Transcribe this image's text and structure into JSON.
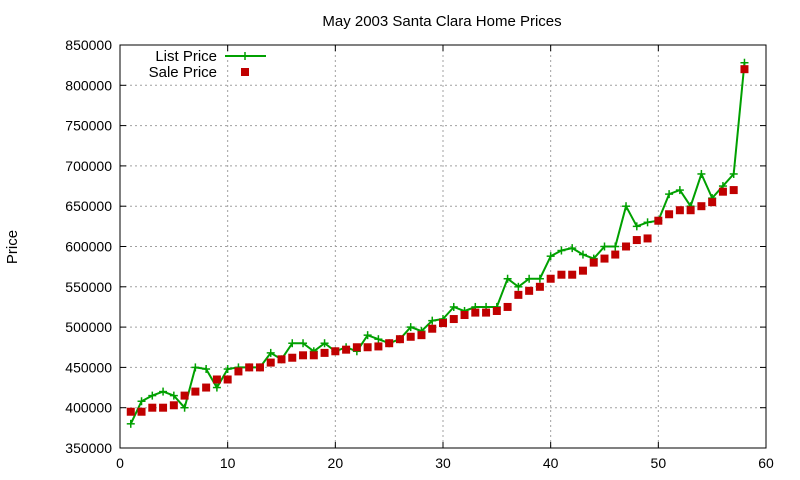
{
  "chart_data": {
    "type": "line",
    "title": "May 2003 Santa Clara Home Prices",
    "xlabel": "",
    "ylabel": "Price",
    "xlim": [
      0,
      60
    ],
    "ylim": [
      350000,
      850000
    ],
    "xticks": [
      "0",
      "10",
      "20",
      "30",
      "40",
      "50",
      "60"
    ],
    "yticks": [
      "350000",
      "400000",
      "450000",
      "500000",
      "550000",
      "600000",
      "650000",
      "700000",
      "750000",
      "800000",
      "850000"
    ],
    "grid": true,
    "legend": "top-left",
    "x": [
      1,
      2,
      3,
      4,
      5,
      6,
      7,
      8,
      9,
      10,
      11,
      12,
      13,
      14,
      15,
      16,
      17,
      18,
      19,
      20,
      21,
      22,
      23,
      24,
      25,
      26,
      27,
      28,
      29,
      30,
      31,
      32,
      33,
      34,
      35,
      36,
      37,
      38,
      39,
      40,
      41,
      42,
      43,
      44,
      45,
      46,
      47,
      48,
      49,
      50,
      51,
      52,
      53,
      54,
      55,
      56,
      57,
      58
    ],
    "series": [
      {
        "name": "List Price",
        "style": "lines+crosses",
        "color": "#00a000",
        "values": [
          380000,
          408000,
          415000,
          420000,
          415000,
          400000,
          450000,
          448000,
          425000,
          448000,
          450000,
          450000,
          450000,
          468000,
          460000,
          480000,
          480000,
          470000,
          480000,
          470000,
          475000,
          470000,
          490000,
          485000,
          480000,
          485000,
          500000,
          495000,
          508000,
          510000,
          525000,
          520000,
          525000,
          525000,
          525000,
          560000,
          550000,
          560000,
          560000,
          588000,
          595000,
          598000,
          590000,
          585000,
          600000,
          600000,
          650000,
          625000,
          630000,
          632000,
          665000,
          670000,
          650000,
          690000,
          660000,
          675000,
          690000,
          828000
        ]
      },
      {
        "name": "Sale Price",
        "style": "points",
        "color": "#c00000",
        "values": [
          395000,
          395000,
          400000,
          400000,
          403000,
          415000,
          420000,
          425000,
          435000,
          435000,
          445000,
          450000,
          450000,
          456000,
          460000,
          462000,
          465000,
          465000,
          468000,
          470000,
          472000,
          475000,
          475000,
          476000,
          480000,
          485000,
          488000,
          490000,
          498000,
          505000,
          510000,
          515000,
          518000,
          518000,
          520000,
          525000,
          540000,
          545000,
          550000,
          560000,
          565000,
          565000,
          570000,
          580000,
          585000,
          590000,
          600000,
          608000,
          610000,
          632000,
          640000,
          645000,
          645000,
          650000,
          655000,
          668000,
          670000,
          820000
        ]
      }
    ]
  }
}
